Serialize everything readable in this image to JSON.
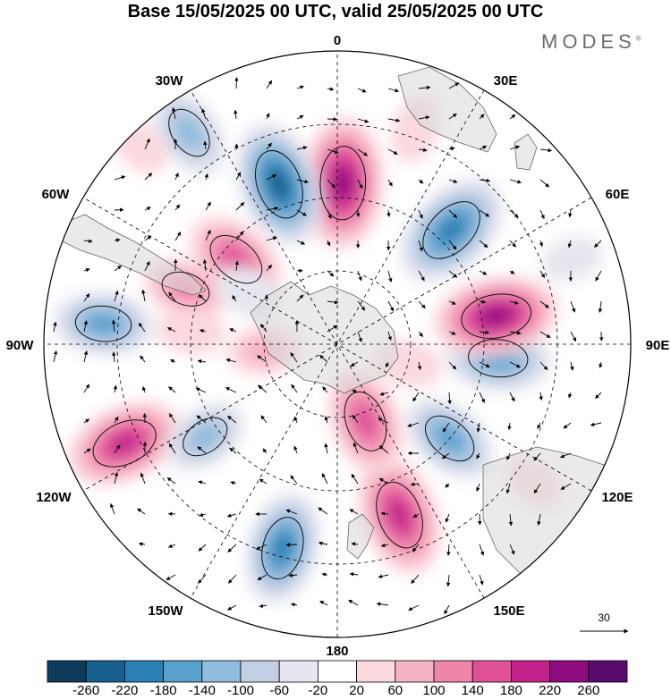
{
  "title": "Base 15/05/2025 00 UTC, valid 25/05/2025 00 UTC",
  "brand": {
    "name": "MODES",
    "mark": "®"
  },
  "longitude_labels": {
    "lon0": "0",
    "lon30e": "30E",
    "lon60e": "60E",
    "lon90e": "90E",
    "lon120e": "120E",
    "lon150e": "150E",
    "lon180": "180",
    "lon150w": "150W",
    "lon120w": "120W",
    "lon90w": "90W",
    "lon60w": "60W",
    "lon30w": "30W"
  },
  "reference_vector": {
    "label": "30"
  },
  "colorbar": {
    "colors": [
      "#0e3b5c",
      "#175f8d",
      "#2a7fb4",
      "#5aa0cd",
      "#90bcdd",
      "#c3cfe4",
      "#e6e6f0",
      "#ffffff",
      "#fbd9de",
      "#f6b3c3",
      "#ee86ac",
      "#e0519a",
      "#c4228c",
      "#8f0b80",
      "#5b0a6e"
    ],
    "ticks": [
      "-260",
      "-220",
      "-180",
      "-140",
      "-100",
      "-60",
      "-20",
      "20",
      "60",
      "100",
      "140",
      "180",
      "220",
      "260"
    ]
  },
  "anomalies": [
    {
      "lon": -110,
      "r": 0.55,
      "v": 120
    },
    {
      "lon": -65,
      "r": 0.8,
      "v": 220
    },
    {
      "lon": -55,
      "r": 0.55,
      "v": -120
    },
    {
      "lon": -95,
      "r": 0.8,
      "v": -160
    },
    {
      "lon": -95,
      "r": 0.5,
      "v": 60
    },
    {
      "lon": -15,
      "r": 0.72,
      "v": -200
    },
    {
      "lon": 20,
      "r": 0.62,
      "v": 230
    },
    {
      "lon": 20,
      "r": 0.28,
      "v": 190
    },
    {
      "lon": 50,
      "r": 0.5,
      "v": -160
    },
    {
      "lon": 55,
      "r": 0.82,
      "v": 40
    },
    {
      "lon": 85,
      "r": 0.55,
      "v": -180
    },
    {
      "lon": 100,
      "r": 0.55,
      "v": 240
    },
    {
      "lon": 135,
      "r": 0.55,
      "v": -230
    },
    {
      "lon": 110,
      "r": 0.85,
      "v": -40
    },
    {
      "lon": 178,
      "r": 0.55,
      "v": 260
    },
    {
      "lon": 160,
      "r": 0.78,
      "v": 60
    },
    {
      "lon": -160,
      "r": 0.58,
      "v": -240
    },
    {
      "lon": -145,
      "r": 0.88,
      "v": -140
    },
    {
      "lon": -130,
      "r": 0.45,
      "v": 180
    },
    {
      "lon": -120,
      "r": 0.35,
      "v": -60
    },
    {
      "lon": -85,
      "r": 0.25,
      "v": 80
    },
    {
      "lon": 75,
      "r": 0.25,
      "v": 60
    },
    {
      "lon": -135,
      "r": 0.95,
      "v": 40
    }
  ]
}
